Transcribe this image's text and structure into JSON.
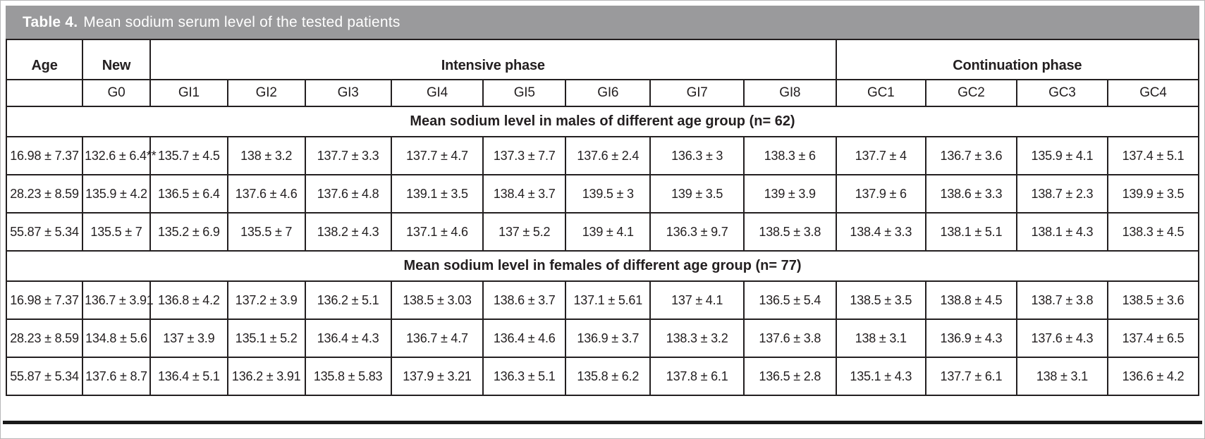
{
  "table": {
    "caption_label": "Table 4.",
    "caption_text": "Mean sodium serum level of the tested patients",
    "header": {
      "row1": {
        "age": "Age",
        "new": "New",
        "intensive": "Intensive phase",
        "continuation": "Continuation phase"
      },
      "row2": [
        "G0",
        "GI1",
        "GI2",
        "GI3",
        "GI4",
        "GI5",
        "GI6",
        "GI7",
        "GI8",
        "GC1",
        "GC2",
        "GC3",
        "GC4"
      ]
    },
    "sections": [
      {
        "title": "Mean sodium level in males of different age group (n= 62)",
        "rows": [
          [
            "16.98 ± 7.37",
            "132.6 ± 6.4**",
            "135.7 ± 4.5",
            "138 ± 3.2",
            "137.7 ± 3.3",
            "137.7 ± 4.7",
            "137.3 ± 7.7",
            "137.6 ± 2.4",
            "136.3 ± 3",
            "138.3 ± 6",
            "137.7 ± 4",
            "136.7 ± 3.6",
            "135.9 ± 4.1",
            "137.4 ± 5.1"
          ],
          [
            "28.23 ± 8.59",
            "135.9 ± 4.2",
            "136.5 ± 6.4",
            "137.6 ± 4.6",
            "137.6 ± 4.8",
            "139.1 ± 3.5",
            "138.4 ± 3.7",
            "139.5 ± 3",
            "139 ± 3.5",
            "139 ± 3.9",
            "137.9 ± 6",
            "138.6 ± 3.3",
            "138.7 ± 2.3",
            "139.9 ± 3.5"
          ],
          [
            "55.87 ± 5.34",
            "135.5 ± 7",
            "135.2 ± 6.9",
            "135.5 ± 7",
            "138.2 ± 4.3",
            "137.1 ± 4.6",
            "137 ± 5.2",
            "139 ± 4.1",
            "136.3 ± 9.7",
            "138.5 ± 3.8",
            "138.4 ± 3.3",
            "138.1 ± 5.1",
            "138.1 ± 4.3",
            "138.3 ± 4.5"
          ]
        ]
      },
      {
        "title": "Mean sodium level in females of different age group (n= 77)",
        "rows": [
          [
            "16.98 ± 7.37",
            "136.7 ± 3.91",
            "136.8 ± 4.2",
            "137.2 ± 3.9",
            "136.2 ± 5.1",
            "138.5 ± 3.03",
            "138.6 ± 3.7",
            "137.1 ± 5.61",
            "137 ± 4.1",
            "136.5 ± 5.4",
            "138.5 ± 3.5",
            "138.8 ± 4.5",
            "138.7 ± 3.8",
            "138.5 ± 3.6"
          ],
          [
            "28.23 ± 8.59",
            "134.8 ± 5.6",
            "137 ± 3.9",
            "135.1 ± 5.2",
            "136.4 ± 4.3",
            "136.7 ± 4.7",
            "136.4 ± 4.6",
            "136.9 ± 3.7",
            "138.3 ± 3.2",
            "137.6 ± 3.8",
            "138 ± 3.1",
            "136.9 ± 4.3",
            "137.6 ± 4.3",
            "137.4 ± 6.5"
          ],
          [
            "55.87 ± 5.34",
            "137.6 ± 8.7",
            "136.4 ± 5.1",
            "136.2 ± 3.91",
            "135.8 ± 5.83",
            "137.9 ± 3.21",
            "136.3 ± 5.1",
            "135.8 ± 6.2",
            "137.8 ± 6.1",
            "136.5 ± 2.8",
            "135.1 ± 4.3",
            "137.7 ± 6.1",
            "138 ± 3.1",
            "136.6 ± 4.2"
          ]
        ]
      }
    ],
    "colors": {
      "caption_bg": "#9a9a9c",
      "caption_fg": "#ffffff",
      "border": "#231f20",
      "bottom_rule": "#1a1a1a"
    }
  }
}
